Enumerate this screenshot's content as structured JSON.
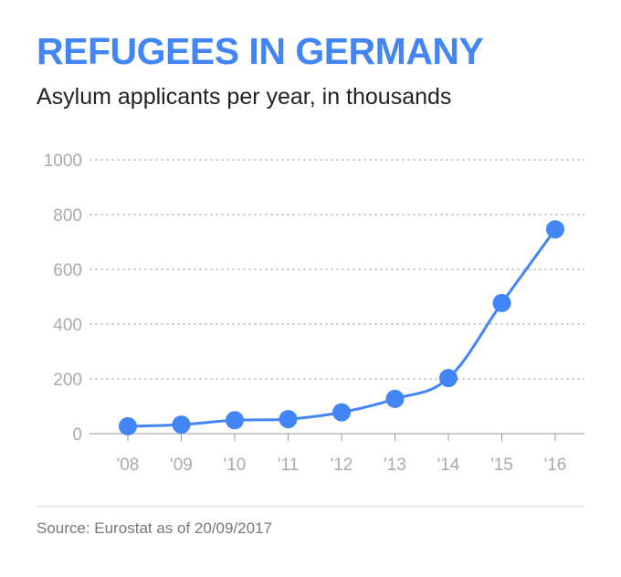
{
  "title": "REFUGEES IN GERMANY",
  "subtitle": "Asylum applicants per year, in thousands",
  "source": "Source: Eurostat as of 20/09/2017",
  "colors": {
    "title": "#4285f4",
    "line": "#4285f4",
    "grid": "#aaaaaa",
    "tick_label": "#aaaaaa"
  },
  "chart_data": {
    "type": "line",
    "categories": [
      "'08",
      "'09",
      "'10",
      "'11",
      "'12",
      "'13",
      "'14",
      "'15",
      "'16"
    ],
    "series": [
      {
        "values": [
          27,
          33,
          49,
          53,
          78,
          127,
          203,
          477,
          746
        ]
      }
    ],
    "yticks": [
      "0",
      "200",
      "400",
      "600",
      "800",
      "1000"
    ],
    "ylim": [
      0,
      1000
    ],
    "grid": true,
    "grid_style": "dashed-horizontal",
    "markers": "circle"
  }
}
